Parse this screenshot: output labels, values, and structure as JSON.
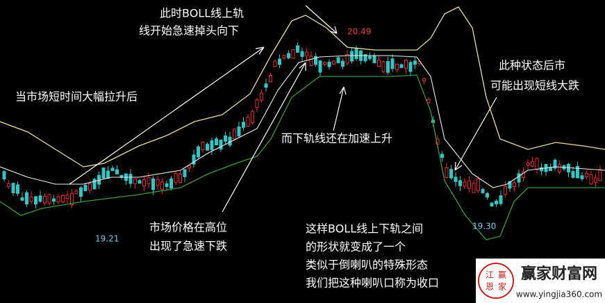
{
  "annotations": {
    "top": [
      "此时BOLL线上轨",
      "线开始急速掉头向下"
    ],
    "left": "当市场短时间大幅拉升后",
    "middle": "而下轨线还在加速上升",
    "bottom_left": [
      "市场价格在高位",
      "出现了急速下跌"
    ],
    "right": [
      "此种状态后市",
      "可能出现短线大跌"
    ],
    "bottom": [
      "这样BOLL线上下轨之间",
      "的形状就变成了一个",
      "类似于倒喇叭的特殊形态",
      "我们把这种喇叭口称为收口"
    ]
  },
  "price_labels": {
    "high": "20.49",
    "low_left": "19.21",
    "low_right": "19.30"
  },
  "watermark": {
    "logo": [
      "江",
      "赢",
      "恩",
      "家"
    ],
    "name": "赢家财富网",
    "url": "www.yingjia360.com"
  }
}
